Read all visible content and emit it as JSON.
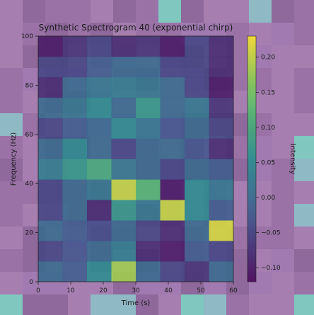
{
  "chart_data": {
    "type": "heatmap",
    "title": "Synthetic Spectrogram 40 (exponential chirp)",
    "xlabel": "Time (s)",
    "ylabel": "Frequency (Hz)",
    "colorbar_label": "Intensity",
    "xlim": [
      0,
      60
    ],
    "ylim": [
      0,
      100
    ],
    "x_ticks": [
      "0",
      "10",
      "20",
      "30",
      "40",
      "50",
      "60"
    ],
    "y_ticks": [
      "0",
      "20",
      "40",
      "60",
      "80",
      "100"
    ],
    "colorbar_ticks": [
      "0.20",
      "0.15",
      "0.10",
      "0.05",
      "0.00",
      "−0.05",
      "−0.10"
    ],
    "color_range": [
      -0.12,
      0.23
    ],
    "colormap": "viridis",
    "grid": false,
    "time_bins": 8,
    "freq_bins": 12,
    "values": [
      [
        0.0,
        -0.02,
        0.05,
        0.18,
        0.0,
        -0.05,
        -0.07,
        0.0
      ],
      [
        -0.05,
        -0.03,
        0.0,
        0.03,
        -0.08,
        -0.1,
        -0.02,
        -0.05
      ],
      [
        0.0,
        -0.02,
        -0.04,
        0.0,
        -0.05,
        -0.08,
        0.0,
        0.21
      ],
      [
        -0.05,
        0.0,
        -0.08,
        0.07,
        0.02,
        0.2,
        0.05,
        -0.02
      ],
      [
        -0.05,
        0.0,
        0.02,
        0.2,
        0.12,
        -0.1,
        0.05,
        0.02
      ],
      [
        0.03,
        0.07,
        0.1,
        0.02,
        0.0,
        -0.05,
        0.0,
        -0.02
      ],
      [
        0.0,
        0.05,
        0.0,
        -0.05,
        0.0,
        0.0,
        -0.03,
        -0.08
      ],
      [
        -0.05,
        -0.02,
        0.0,
        0.05,
        0.02,
        -0.03,
        0.0,
        -0.05
      ],
      [
        0.0,
        0.02,
        0.05,
        0.0,
        0.07,
        0.0,
        0.02,
        -0.07
      ],
      [
        -0.08,
        0.0,
        0.02,
        0.03,
        0.02,
        0.0,
        -0.05,
        -0.1
      ],
      [
        -0.05,
        -0.05,
        -0.02,
        0.0,
        0.0,
        -0.05,
        -0.05,
        -0.08
      ],
      [
        -0.1,
        -0.07,
        -0.05,
        -0.08,
        -0.07,
        -0.1,
        -0.05,
        -0.08
      ]
    ]
  }
}
